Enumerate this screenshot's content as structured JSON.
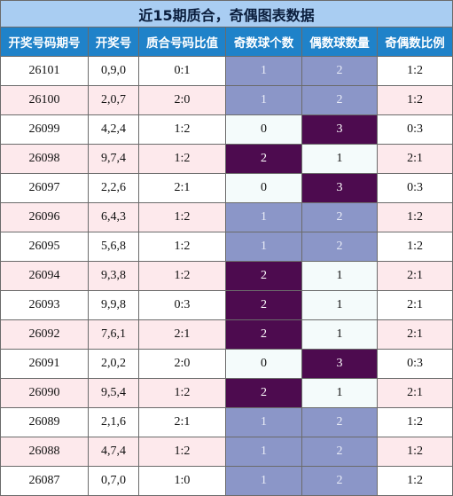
{
  "title": "近15期质合，奇偶图表数据",
  "headers": [
    "开奖号码期号",
    "开奖号",
    "质合号码比值",
    "奇数球个数",
    "偶数球数量",
    "奇偶数比例"
  ],
  "colors": {
    "title_bg": "#a9cdf2",
    "header_bg": "#1f82c9",
    "alt_row_bg": "#fde9ec",
    "count_1_bg": "#8b96c8",
    "count_2_3_bg": "#4d0b4f",
    "count_0_1_light_bg": "#f4fbfb"
  },
  "rows": [
    {
      "period": "26101",
      "numbers": "0,9,0",
      "prime_composite": "0:1",
      "odd": "1",
      "even": "2",
      "ratio": "1:2"
    },
    {
      "period": "26100",
      "numbers": "2,0,7",
      "prime_composite": "2:0",
      "odd": "1",
      "even": "2",
      "ratio": "1:2"
    },
    {
      "period": "26099",
      "numbers": "4,2,4",
      "prime_composite": "1:2",
      "odd": "0",
      "even": "3",
      "ratio": "0:3"
    },
    {
      "period": "26098",
      "numbers": "9,7,4",
      "prime_composite": "1:2",
      "odd": "2",
      "even": "1",
      "ratio": "2:1"
    },
    {
      "period": "26097",
      "numbers": "2,2,6",
      "prime_composite": "2:1",
      "odd": "0",
      "even": "3",
      "ratio": "0:3"
    },
    {
      "period": "26096",
      "numbers": "6,4,3",
      "prime_composite": "1:2",
      "odd": "1",
      "even": "2",
      "ratio": "1:2"
    },
    {
      "period": "26095",
      "numbers": "5,6,8",
      "prime_composite": "1:2",
      "odd": "1",
      "even": "2",
      "ratio": "1:2"
    },
    {
      "period": "26094",
      "numbers": "9,3,8",
      "prime_composite": "1:2",
      "odd": "2",
      "even": "1",
      "ratio": "2:1"
    },
    {
      "period": "26093",
      "numbers": "9,9,8",
      "prime_composite": "0:3",
      "odd": "2",
      "even": "1",
      "ratio": "2:1"
    },
    {
      "period": "26092",
      "numbers": "7,6,1",
      "prime_composite": "2:1",
      "odd": "2",
      "even": "1",
      "ratio": "2:1"
    },
    {
      "period": "26091",
      "numbers": "2,0,2",
      "prime_composite": "2:0",
      "odd": "0",
      "even": "3",
      "ratio": "0:3"
    },
    {
      "period": "26090",
      "numbers": "9,5,4",
      "prime_composite": "1:2",
      "odd": "2",
      "even": "1",
      "ratio": "2:1"
    },
    {
      "period": "26089",
      "numbers": "2,1,6",
      "prime_composite": "2:1",
      "odd": "1",
      "even": "2",
      "ratio": "1:2"
    },
    {
      "period": "26088",
      "numbers": "4,7,4",
      "prime_composite": "1:2",
      "odd": "1",
      "even": "2",
      "ratio": "1:2"
    },
    {
      "period": "26087",
      "numbers": "0,7,0",
      "prime_composite": "1:0",
      "odd": "1",
      "even": "2",
      "ratio": "1:2"
    }
  ]
}
